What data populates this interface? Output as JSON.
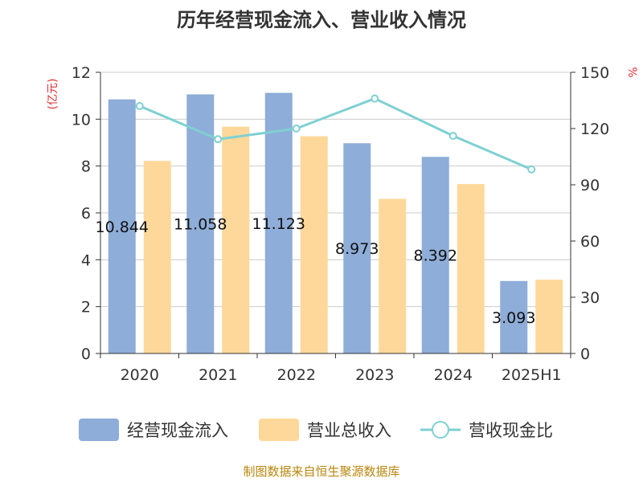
{
  "chart_data": {
    "type": "bar",
    "title": "历年经营现金流入、营业收入情况",
    "categories": [
      "2020",
      "2021",
      "2022",
      "2023",
      "2024",
      "2025H1"
    ],
    "series": [
      {
        "name": "经营现金流入",
        "kind": "bar",
        "axis": "left",
        "color": "#8eadd8",
        "values": [
          10.844,
          11.058,
          11.123,
          8.973,
          8.392,
          3.093
        ],
        "labels": [
          "10.844",
          "11.058",
          "11.123",
          "8.973",
          "8.392",
          "3.093"
        ]
      },
      {
        "name": "营业总收入",
        "kind": "bar",
        "axis": "left",
        "color": "#fdd89a",
        "values": [
          8.22,
          9.68,
          9.27,
          6.6,
          7.23,
          3.15
        ]
      },
      {
        "name": "营收现金比",
        "kind": "line",
        "axis": "right",
        "color": "#7fd0d2",
        "values": [
          132.0,
          114.3,
          120.0,
          136.0,
          116.1,
          98.2
        ]
      }
    ],
    "y_left": {
      "unit": "(亿元)",
      "min": 0,
      "max": 12,
      "ticks": [
        0,
        2,
        4,
        6,
        8,
        10,
        12
      ]
    },
    "y_right": {
      "unit": "%",
      "min": 0,
      "max": 150,
      "ticks": [
        0,
        30,
        60,
        90,
        120,
        150
      ]
    },
    "grid": true,
    "legend_position": "bottom"
  },
  "source": "制图数据来自恒生聚源数据库"
}
